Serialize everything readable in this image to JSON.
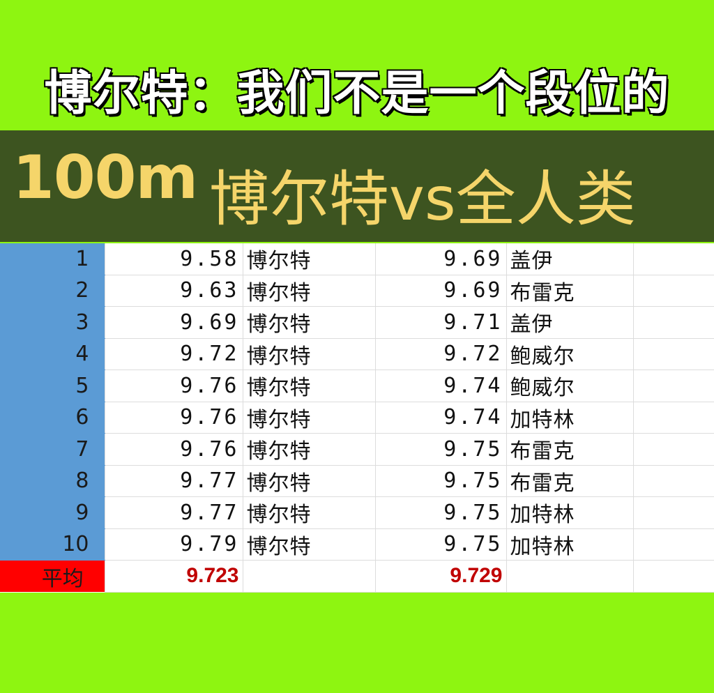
{
  "headline": "博尔特：我们不是一个段位的",
  "banner": {
    "distance": "100m",
    "matchup": "博尔特vs全人类"
  },
  "colors": {
    "background": "#8ef511",
    "banner_bg": "#3d5420",
    "banner_text": "#f5d56a",
    "rank_column": "#5b9bd5",
    "average_label_bg": "#ff0000",
    "average_value_text": "#c00000"
  },
  "rows": [
    {
      "rank": "1",
      "bolt_time": "9.58",
      "bolt_name": "博尔特",
      "other_time": "9.69",
      "other_name": "盖伊"
    },
    {
      "rank": "2",
      "bolt_time": "9.63",
      "bolt_name": "博尔特",
      "other_time": "9.69",
      "other_name": "布雷克"
    },
    {
      "rank": "3",
      "bolt_time": "9.69",
      "bolt_name": "博尔特",
      "other_time": "9.71",
      "other_name": "盖伊"
    },
    {
      "rank": "4",
      "bolt_time": "9.72",
      "bolt_name": "博尔特",
      "other_time": "9.72",
      "other_name": "鲍威尔"
    },
    {
      "rank": "5",
      "bolt_time": "9.76",
      "bolt_name": "博尔特",
      "other_time": "9.74",
      "other_name": "鲍威尔"
    },
    {
      "rank": "6",
      "bolt_time": "9.76",
      "bolt_name": "博尔特",
      "other_time": "9.74",
      "other_name": "加特林"
    },
    {
      "rank": "7",
      "bolt_time": "9.76",
      "bolt_name": "博尔特",
      "other_time": "9.75",
      "other_name": "布雷克"
    },
    {
      "rank": "8",
      "bolt_time": "9.77",
      "bolt_name": "博尔特",
      "other_time": "9.75",
      "other_name": "布雷克"
    },
    {
      "rank": "9",
      "bolt_time": "9.77",
      "bolt_name": "博尔特",
      "other_time": "9.75",
      "other_name": "加特林"
    },
    {
      "rank": "10",
      "bolt_time": "9.79",
      "bolt_name": "博尔特",
      "other_time": "9.75",
      "other_name": "加特林"
    }
  ],
  "average": {
    "label": "平均",
    "bolt": "9.723",
    "others": "9.729"
  }
}
